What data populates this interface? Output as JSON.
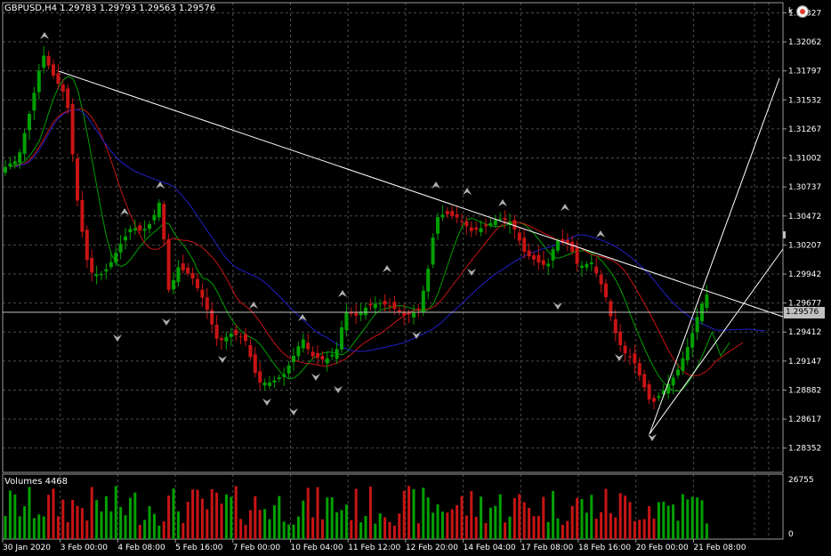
{
  "symbol_info": "GBPUSD,H4  1.29783 1.29793 1.29563 1.29576",
  "current_price": "1.29576",
  "volumes_label": "Volumes 4468",
  "corner_icon": "k",
  "colors": {
    "background": "#000000",
    "grid": "#4a4a4a",
    "bull": "#00a000",
    "bear": "#c81414",
    "ma_fast": "#00a000",
    "ma_mid": "#c81414",
    "ma_slow": "#2020c8",
    "trendline": "#ffffff"
  },
  "chart_data": {
    "type": "candlestick",
    "price_axis": {
      "ticks": [
        "1.32327",
        "1.32062",
        "1.31797",
        "1.31532",
        "1.31267",
        "1.31002",
        "1.30737",
        "1.30472",
        "1.30207",
        "1.29942",
        "1.29677",
        "1.29412",
        "1.29147",
        "1.28882",
        "1.28617",
        "1.28352"
      ],
      "range": [
        1.2813,
        1.3242
      ]
    },
    "volume_axis": {
      "ticks": [
        "26755",
        "0"
      ],
      "range": [
        0,
        26755
      ]
    },
    "time_axis": [
      "30 Jan 2020",
      "3 Feb 00:00",
      "4 Feb 08:00",
      "5 Feb 16:00",
      "7 Feb 00:00",
      "10 Feb 04:00",
      "11 Feb 12:00",
      "12 Feb 20:00",
      "14 Feb 04:00",
      "17 Feb 08:00",
      "18 Feb 16:00",
      "20 Feb 00:00",
      "21 Feb 08:00"
    ]
  }
}
